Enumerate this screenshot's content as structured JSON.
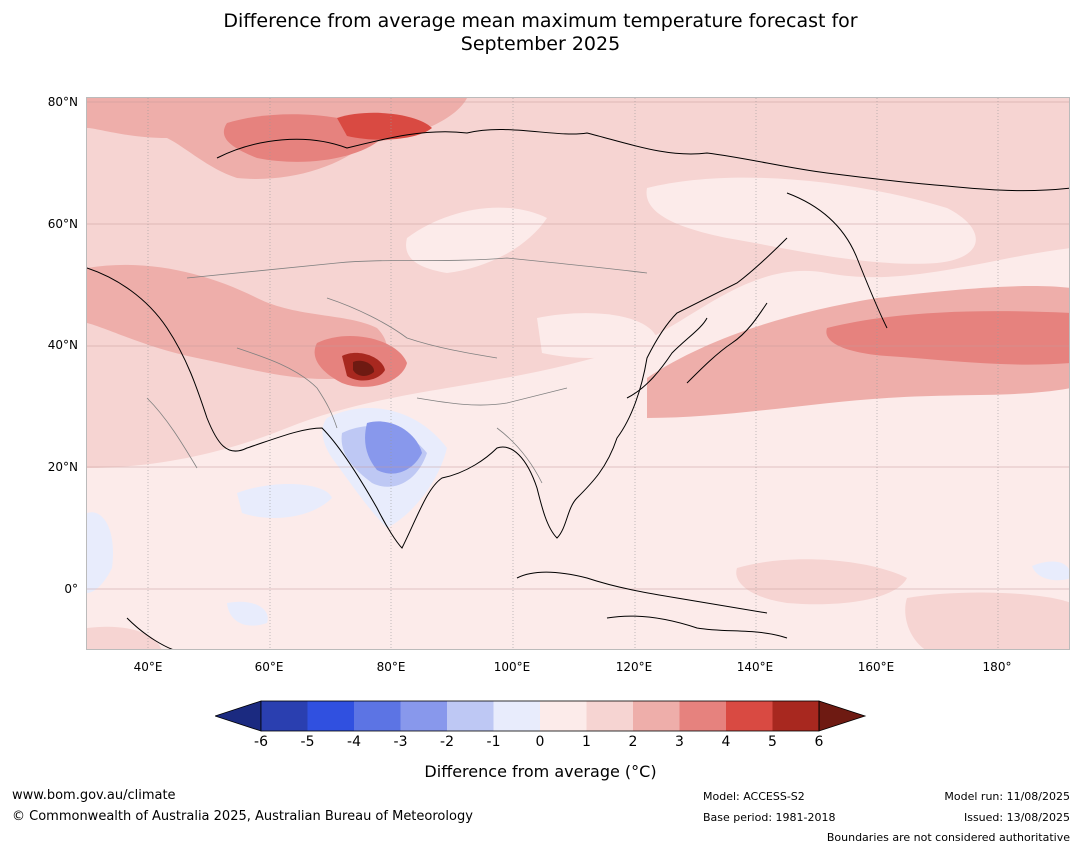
{
  "title": {
    "line1": "Difference from average mean maximum temperature forecast for",
    "line2": "September 2025"
  },
  "map": {
    "lat_labels": [
      "80°N",
      "60°N",
      "40°N",
      "20°N",
      "0°"
    ],
    "lon_labels": [
      "40°E",
      "60°E",
      "80°E",
      "100°E",
      "120°E",
      "140°E",
      "160°E",
      "180°"
    ],
    "colors": {
      "neg6": "#1b2a80",
      "neg5": "#2a3fb0",
      "neg4": "#3050e0",
      "neg3": "#5c74e4",
      "neg2": "#8898ec",
      "neg1": "#bec8f4",
      "zero": "#e8ecfc",
      "pos1": "#fcebea",
      "pos2": "#f6d4d2",
      "pos3": "#eeaeaa",
      "pos4": "#e6827e",
      "pos5": "#d94a42",
      "pos6": "#a8281f",
      "pos7": "#6e1a12"
    }
  },
  "colorbar": {
    "ticks": [
      "-6",
      "-5",
      "-4",
      "-3",
      "-2",
      "-1",
      "0",
      "1",
      "2",
      "3",
      "4",
      "5",
      "6"
    ],
    "label": "Difference from average (°C)"
  },
  "footer": {
    "website": "www.bom.gov.au/climate",
    "copyright": "© Commonwealth of Australia 2025, Australian Bureau of Meteorology",
    "model": "Model: ACCESS-S2",
    "base_period": "Base period: 1981-2018",
    "model_run": "Model run: 11/08/2025",
    "issued": "Issued: 13/08/2025",
    "disclaimer": "Boundaries are not considered authoritative"
  }
}
